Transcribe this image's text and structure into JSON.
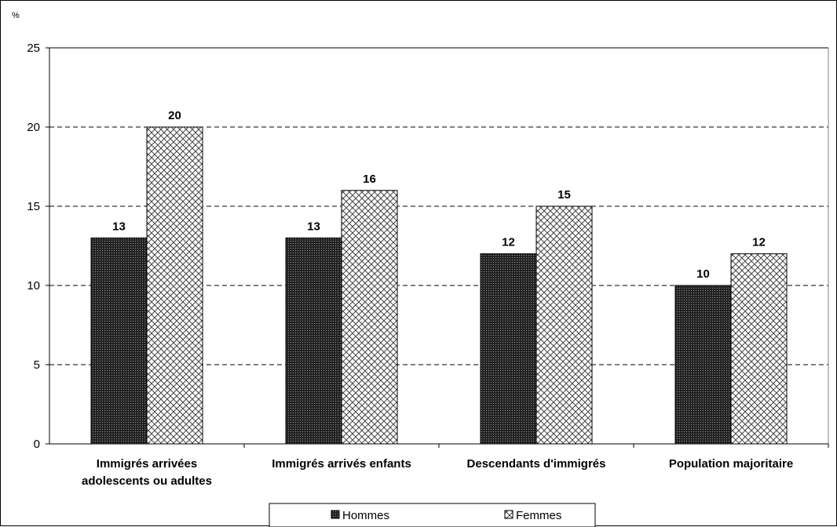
{
  "chart_data": {
    "type": "bar",
    "unit_label": "%",
    "categories": [
      [
        "Immigrés arrivées",
        "adolescents ou adultes"
      ],
      [
        "Immigrés arrivés enfants"
      ],
      [
        "Descendants d'immigrés"
      ],
      [
        "Population majoritaire"
      ]
    ],
    "series": [
      {
        "name": "Hommes",
        "values": [
          13,
          13,
          12,
          10
        ],
        "pattern": "dots",
        "color": "#000000"
      },
      {
        "name": "Femmes",
        "values": [
          20,
          16,
          15,
          12
        ],
        "pattern": "crosshatch",
        "color": "#000000"
      }
    ],
    "ylim": [
      0,
      25
    ],
    "yticks": [
      0,
      5,
      10,
      15,
      20,
      25
    ],
    "grid": "dashed horizontal",
    "legend": "bottom"
  }
}
